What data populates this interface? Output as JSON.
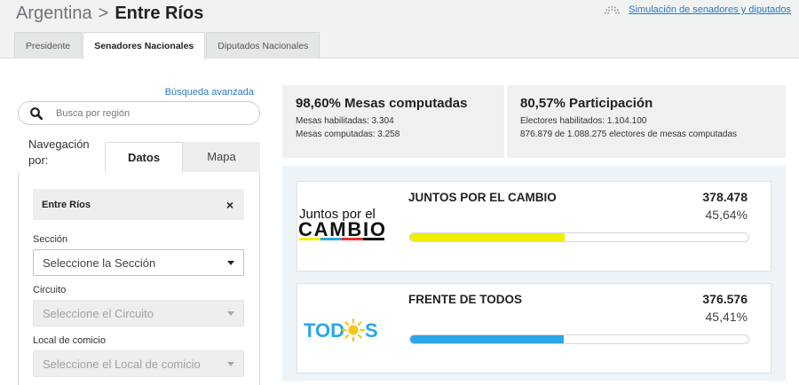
{
  "header": {
    "country": "Argentina",
    "separator": ">",
    "province": "Entre Ríos",
    "simulation_link": "Simulación de senadores y diputados",
    "simulation_icon": "chamber-seats-icon"
  },
  "tabs": [
    {
      "label": "Presidente",
      "active": false
    },
    {
      "label": "Senadores Nacionales",
      "active": true
    },
    {
      "label": "Diputados Nacionales",
      "active": false
    }
  ],
  "left_panel": {
    "advanced_search": "Búsqueda avanzada",
    "search_placeholder": "Busca por región",
    "navigation_label": "Navegación por:",
    "subtabs": {
      "datos": "Datos",
      "mapa": "Mapa"
    },
    "selected_chip": "Entre Ríos",
    "chip_close": "×",
    "filters": [
      {
        "label": "Sección",
        "placeholder": "Seleccione la Sección",
        "disabled": false
      },
      {
        "label": "Circuito",
        "placeholder": "Seleccione el Circuito",
        "disabled": true
      },
      {
        "label": "Local de comicio",
        "placeholder": "Seleccione el Local de comicio",
        "disabled": true
      }
    ]
  },
  "stats": {
    "mesas": {
      "title": "98,60% Mesas computadas",
      "habilitadas": "Mesas habilitadas: 3.304",
      "computadas": "Mesas computadas: 3.258"
    },
    "participacion": {
      "title": "80,57% Participación",
      "electores": "Electores habilitados: 1.104.100",
      "detalle": "876.879 de 1.088.275 electores de mesas computadas"
    }
  },
  "results": [
    {
      "party": "JUNTOS POR EL CAMBIO",
      "votes": "378.478",
      "percent_label": "45,64%",
      "percent": 45.64,
      "color": "#f2ee00",
      "logo_line1": "Juntos por el",
      "logo_line2": "CAMBIO"
    },
    {
      "party": "FRENTE DE TODOS",
      "votes": "376.576",
      "percent_label": "45,41%",
      "percent": 45.41,
      "color": "#2aa7e5",
      "logo_text_a": "TOD",
      "logo_text_b": "S"
    }
  ],
  "colors": {
    "link": "#2a78c2",
    "cambio_yellow": "#f2ee00",
    "todos_blue": "#2aa7e5",
    "sun": "#f7c51c"
  }
}
